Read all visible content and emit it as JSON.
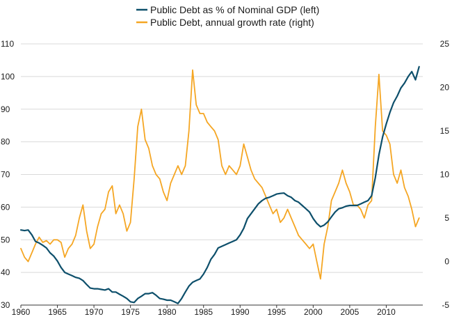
{
  "chart_data": {
    "type": "line",
    "title": "",
    "xlabel": "",
    "ylabel_left": "",
    "ylabel_right": "",
    "xlim": [
      1960,
      2015
    ],
    "ylim_left": [
      30,
      110
    ],
    "ylim_right": [
      -5,
      25
    ],
    "grid": "horizontal",
    "legend_position": "top-center",
    "x_ticks": [
      "1960",
      "1965",
      "1970",
      "1975",
      "1980",
      "1985",
      "1990",
      "1995",
      "2000",
      "2005",
      "2010"
    ],
    "y_left_ticks": [
      "30",
      "40",
      "50",
      "60",
      "70",
      "80",
      "90",
      "100",
      "110"
    ],
    "y_right_ticks": [
      "-5",
      "0",
      "5",
      "10",
      "15",
      "20",
      "25"
    ],
    "series": [
      {
        "name": "Public Debt as % of Nominal GDP (left)",
        "axis": "left",
        "color": "#0d4f6b",
        "points": [
          [
            1960.0,
            53
          ],
          [
            1960.5,
            52.8
          ],
          [
            1961.0,
            53
          ],
          [
            1961.5,
            51.5
          ],
          [
            1962.0,
            49.5
          ],
          [
            1962.5,
            49
          ],
          [
            1963.0,
            48.3
          ],
          [
            1963.5,
            47.5
          ],
          [
            1964.0,
            46
          ],
          [
            1964.5,
            45
          ],
          [
            1965.0,
            43.5
          ],
          [
            1965.5,
            41.5
          ],
          [
            1966.0,
            40
          ],
          [
            1966.5,
            39.5
          ],
          [
            1967.0,
            39
          ],
          [
            1967.5,
            38.5
          ],
          [
            1968.0,
            38.2
          ],
          [
            1968.5,
            37.5
          ],
          [
            1969.0,
            36.3
          ],
          [
            1969.5,
            35.2
          ],
          [
            1970.0,
            35
          ],
          [
            1970.5,
            35
          ],
          [
            1971.0,
            34.8
          ],
          [
            1971.5,
            34.6
          ],
          [
            1972.0,
            35
          ],
          [
            1972.5,
            34
          ],
          [
            1973.0,
            34
          ],
          [
            1973.5,
            33.3
          ],
          [
            1974.0,
            32.7
          ],
          [
            1974.5,
            32
          ],
          [
            1975.0,
            31
          ],
          [
            1975.5,
            30.8
          ],
          [
            1976.0,
            32
          ],
          [
            1976.5,
            32.7
          ],
          [
            1977.0,
            33.5
          ],
          [
            1977.5,
            33.5
          ],
          [
            1978.0,
            33.8
          ],
          [
            1978.5,
            33
          ],
          [
            1979.0,
            32
          ],
          [
            1979.5,
            31.8
          ],
          [
            1980.0,
            31.5
          ],
          [
            1980.5,
            31.5
          ],
          [
            1981.0,
            31
          ],
          [
            1981.5,
            30.5
          ],
          [
            1982.0,
            32
          ],
          [
            1982.5,
            34
          ],
          [
            1983.0,
            35.8
          ],
          [
            1983.5,
            37
          ],
          [
            1984.0,
            37.5
          ],
          [
            1984.5,
            38
          ],
          [
            1985.0,
            39.5
          ],
          [
            1985.5,
            41.5
          ],
          [
            1986.0,
            44
          ],
          [
            1986.5,
            45.5
          ],
          [
            1987.0,
            47.5
          ],
          [
            1987.5,
            48
          ],
          [
            1988.0,
            48.5
          ],
          [
            1988.5,
            49
          ],
          [
            1989.0,
            49.5
          ],
          [
            1989.5,
            50
          ],
          [
            1990.0,
            51.5
          ],
          [
            1990.5,
            53.5
          ],
          [
            1991.0,
            56.5
          ],
          [
            1991.5,
            58
          ],
          [
            1992.0,
            59.5
          ],
          [
            1992.5,
            61
          ],
          [
            1993.0,
            62
          ],
          [
            1993.5,
            62.7
          ],
          [
            1994.0,
            63
          ],
          [
            1994.5,
            63.5
          ],
          [
            1995.0,
            64
          ],
          [
            1995.5,
            64.2
          ],
          [
            1996.0,
            64.3
          ],
          [
            1996.5,
            63.5
          ],
          [
            1997.0,
            63
          ],
          [
            1997.5,
            62
          ],
          [
            1998.0,
            61.5
          ],
          [
            1998.5,
            60.5
          ],
          [
            1999.0,
            59.5
          ],
          [
            1999.5,
            58.5
          ],
          [
            2000.0,
            56.5
          ],
          [
            2000.5,
            55
          ],
          [
            2001.0,
            54
          ],
          [
            2001.5,
            54.5
          ],
          [
            2002.0,
            55.5
          ],
          [
            2002.5,
            57
          ],
          [
            2003.0,
            58.5
          ],
          [
            2003.5,
            59.5
          ],
          [
            2004.0,
            59.8
          ],
          [
            2004.5,
            60.3
          ],
          [
            2005.0,
            60.5
          ],
          [
            2005.5,
            60.5
          ],
          [
            2006.0,
            60.5
          ],
          [
            2006.5,
            61
          ],
          [
            2007.0,
            61.5
          ],
          [
            2007.5,
            62
          ],
          [
            2008.0,
            63.5
          ],
          [
            2008.5,
            69
          ],
          [
            2009.0,
            76
          ],
          [
            2009.5,
            81.5
          ],
          [
            2010.0,
            85.5
          ],
          [
            2010.5,
            89
          ],
          [
            2011.0,
            92
          ],
          [
            2011.5,
            94
          ],
          [
            2012.0,
            96.5
          ],
          [
            2012.5,
            98
          ],
          [
            2013.0,
            100
          ],
          [
            2013.5,
            101.5
          ],
          [
            2014.0,
            99
          ],
          [
            2014.5,
            103
          ]
        ]
      },
      {
        "name": "Public Debt, annual growth rate (right)",
        "axis": "right",
        "color": "#f5a623",
        "points": [
          [
            1960.0,
            1.5
          ],
          [
            1960.5,
            0.5
          ],
          [
            1961.0,
            0
          ],
          [
            1961.5,
            1
          ],
          [
            1962.0,
            2
          ],
          [
            1962.5,
            2.8
          ],
          [
            1963.0,
            2.2
          ],
          [
            1963.5,
            2.4
          ],
          [
            1964.0,
            2
          ],
          [
            1964.5,
            2.5
          ],
          [
            1965.0,
            2.5
          ],
          [
            1965.5,
            2.2
          ],
          [
            1966.0,
            0.5
          ],
          [
            1966.5,
            1.5
          ],
          [
            1967.0,
            2
          ],
          [
            1967.5,
            3
          ],
          [
            1968.0,
            5
          ],
          [
            1968.5,
            6.5
          ],
          [
            1969.0,
            3.5
          ],
          [
            1969.5,
            1.5
          ],
          [
            1970.0,
            2
          ],
          [
            1970.5,
            4
          ],
          [
            1971.0,
            5.5
          ],
          [
            1971.5,
            6
          ],
          [
            1972.0,
            8
          ],
          [
            1972.5,
            8.7
          ],
          [
            1973.0,
            5.5
          ],
          [
            1973.5,
            6.5
          ],
          [
            1974.0,
            5.5
          ],
          [
            1974.5,
            3.5
          ],
          [
            1975.0,
            4.5
          ],
          [
            1975.5,
            9.5
          ],
          [
            1976.0,
            15.5
          ],
          [
            1976.5,
            17.5
          ],
          [
            1977.0,
            14
          ],
          [
            1977.5,
            13
          ],
          [
            1978.0,
            11
          ],
          [
            1978.5,
            10
          ],
          [
            1979.0,
            9.5
          ],
          [
            1979.5,
            8
          ],
          [
            1980.0,
            7
          ],
          [
            1980.5,
            9
          ],
          [
            1981.0,
            10
          ],
          [
            1981.5,
            11
          ],
          [
            1982.0,
            10
          ],
          [
            1982.5,
            11
          ],
          [
            1983.0,
            15
          ],
          [
            1983.5,
            22
          ],
          [
            1984.0,
            18
          ],
          [
            1984.5,
            17
          ],
          [
            1985.0,
            17
          ],
          [
            1985.5,
            16
          ],
          [
            1986.0,
            15.5
          ],
          [
            1986.5,
            15
          ],
          [
            1987.0,
            14
          ],
          [
            1987.5,
            11
          ],
          [
            1988.0,
            10
          ],
          [
            1988.5,
            11
          ],
          [
            1989.0,
            10.5
          ],
          [
            1989.5,
            10
          ],
          [
            1990.0,
            11
          ],
          [
            1990.5,
            13.5
          ],
          [
            1991.0,
            12
          ],
          [
            1991.5,
            10.5
          ],
          [
            1992.0,
            9.5
          ],
          [
            1992.5,
            9
          ],
          [
            1993.0,
            8.5
          ],
          [
            1993.5,
            7.5
          ],
          [
            1994.0,
            6.5
          ],
          [
            1994.5,
            5.5
          ],
          [
            1995.0,
            6
          ],
          [
            1995.5,
            4.5
          ],
          [
            1996.0,
            5
          ],
          [
            1996.5,
            6
          ],
          [
            1997.0,
            5
          ],
          [
            1997.5,
            4
          ],
          [
            1998.0,
            3
          ],
          [
            1998.5,
            2.5
          ],
          [
            1999.0,
            2
          ],
          [
            1999.5,
            1.5
          ],
          [
            2000.0,
            2
          ],
          [
            2000.5,
            0
          ],
          [
            2001.0,
            -2
          ],
          [
            2001.5,
            2
          ],
          [
            2002.0,
            4
          ],
          [
            2002.5,
            7
          ],
          [
            2003.0,
            8
          ],
          [
            2003.5,
            9
          ],
          [
            2004.0,
            10.5
          ],
          [
            2004.5,
            9
          ],
          [
            2005.0,
            8
          ],
          [
            2005.5,
            6.5
          ],
          [
            2006.0,
            6.5
          ],
          [
            2006.5,
            6
          ],
          [
            2007.0,
            5
          ],
          [
            2007.5,
            6.5
          ],
          [
            2008.0,
            7
          ],
          [
            2008.5,
            15.5
          ],
          [
            2009.0,
            21.5
          ],
          [
            2009.5,
            15
          ],
          [
            2010.0,
            14.5
          ],
          [
            2010.5,
            13.5
          ],
          [
            2011.0,
            10
          ],
          [
            2011.5,
            9
          ],
          [
            2012.0,
            10.5
          ],
          [
            2012.5,
            8.5
          ],
          [
            2013.0,
            7.5
          ],
          [
            2013.5,
            6
          ],
          [
            2014.0,
            4
          ],
          [
            2014.5,
            5
          ]
        ]
      }
    ]
  }
}
